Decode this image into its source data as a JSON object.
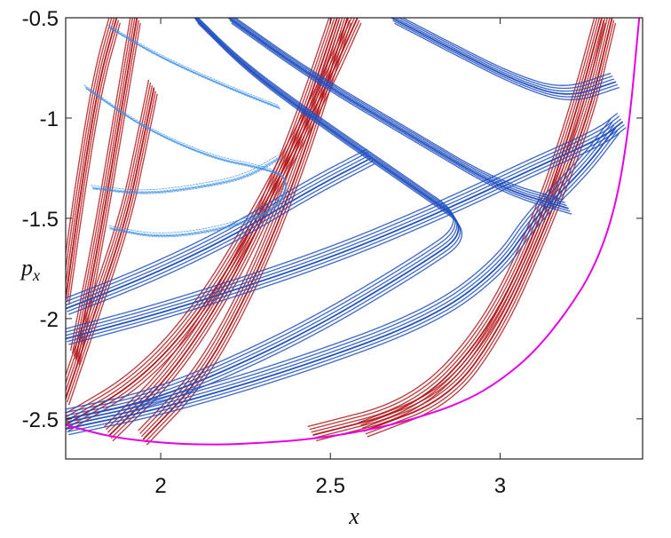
{
  "chart_data": {
    "type": "scatter",
    "title": "",
    "xlabel": "x",
    "ylabel_main": "p",
    "ylabel_sub": "x",
    "xlim": [
      1.72,
      3.42
    ],
    "ylim": [
      -2.7,
      -0.5
    ],
    "x_ticks": [
      2,
      2.5,
      3
    ],
    "x_tick_labels": [
      "2",
      "2.5",
      "3"
    ],
    "y_ticks": [
      -0.5,
      -1,
      -1.5,
      -2,
      -2.5
    ],
    "y_tick_labels": [
      "-0.5",
      "-1",
      "-1.5",
      "-2",
      "-2.5"
    ],
    "grid": false,
    "colors": {
      "red_family": "#b3171b",
      "blue_family": "#1f4fbf",
      "light_blue": "#3a8ee6",
      "boundary": "#e600e6"
    },
    "series": [
      {
        "kind": "boundary",
        "color": "#e600e6",
        "x": [
          1.72,
          1.85,
          2.0,
          2.15,
          2.3,
          2.45,
          2.6,
          2.75,
          2.9,
          3.0,
          3.1,
          3.2,
          3.28,
          3.34,
          3.38,
          3.41
        ],
        "y": [
          -2.53,
          -2.59,
          -2.62,
          -2.63,
          -2.62,
          -2.6,
          -2.56,
          -2.5,
          -2.41,
          -2.31,
          -2.17,
          -1.96,
          -1.74,
          -1.45,
          -1.05,
          -0.5
        ]
      },
      {
        "kind": "red-band-family",
        "color": "#b3171b",
        "bands": [
          {
            "x": [
              1.72,
              1.95,
              2.15,
              2.35,
              2.5,
              2.58
            ],
            "y": [
              -2.53,
              -2.3,
              -1.9,
              -1.3,
              -0.8,
              -0.5
            ]
          },
          {
            "x": [
              1.85,
              2.05,
              2.25,
              2.4,
              2.52
            ],
            "y": [
              -2.58,
              -2.25,
              -1.7,
              -1.1,
              -0.5
            ]
          },
          {
            "x": [
              1.95,
              2.12,
              2.28,
              2.42,
              2.55
            ],
            "y": [
              -2.6,
              -2.3,
              -1.8,
              -1.2,
              -0.5
            ]
          },
          {
            "x": [
              2.45,
              2.75,
              2.95,
              3.1,
              3.22,
              3.3
            ],
            "y": [
              -2.58,
              -2.45,
              -2.1,
              -1.6,
              -1.0,
              -0.5
            ]
          },
          {
            "x": [
              2.6,
              2.85,
              3.0,
              3.12,
              3.26,
              3.33
            ],
            "y": [
              -2.56,
              -2.4,
              -2.05,
              -1.6,
              -1.0,
              -0.5
            ]
          },
          {
            "x": [
              1.72,
              1.8,
              1.9,
              1.95,
              1.98
            ],
            "y": [
              -2.4,
              -2.0,
              -1.5,
              -1.1,
              -0.85
            ]
          },
          {
            "x": [
              1.75,
              1.82,
              1.88,
              1.93
            ],
            "y": [
              -2.2,
              -1.6,
              -1.0,
              -0.5
            ]
          },
          {
            "x": [
              1.72,
              1.77,
              1.82,
              1.87
            ],
            "y": [
              -1.9,
              -1.3,
              -0.8,
              -0.5
            ]
          }
        ]
      },
      {
        "kind": "blue-band-family",
        "color": "#1f4fbf",
        "bands": [
          {
            "x": [
              1.72,
              2.0,
              2.4,
              2.75,
              2.92,
              2.75,
              2.45,
              2.25,
              2.1
            ],
            "y": [
              -2.5,
              -2.4,
              -2.1,
              -1.75,
              -1.55,
              -1.35,
              -1.0,
              -0.75,
              -0.5
            ]
          },
          {
            "x": [
              1.72,
              2.0,
              2.4,
              2.8,
              3.0,
              3.1,
              3.25,
              3.34
            ],
            "y": [
              -2.55,
              -2.45,
              -2.25,
              -2.0,
              -1.75,
              -1.5,
              -1.25,
              -1.05
            ]
          },
          {
            "x": [
              1.72,
              2.05,
              2.5,
              2.85,
              3.1,
              3.3,
              3.36
            ],
            "y": [
              -2.1,
              -1.95,
              -1.7,
              -1.45,
              -1.25,
              -1.1,
              -1.02
            ]
          },
          {
            "x": [
              2.68,
              2.85,
              3.05,
              3.2,
              3.34
            ],
            "y": [
              -0.5,
              -0.65,
              -0.82,
              -0.9,
              -0.82
            ]
          },
          {
            "x": [
              1.72,
              1.95,
              2.2,
              2.45,
              2.62
            ],
            "y": [
              -1.95,
              -1.8,
              -1.6,
              -1.35,
              -1.2
            ]
          },
          {
            "x": [
              2.2,
              2.45,
              2.75,
              3.0,
              3.2
            ],
            "y": [
              -0.5,
              -0.8,
              -1.1,
              -1.35,
              -1.45
            ]
          }
        ]
      },
      {
        "kind": "light-blue-loops",
        "color": "#3a8ee6",
        "bands": [
          {
            "x": [
              1.78,
              1.95,
              2.15,
              2.3,
              2.38,
              2.35,
              2.2,
              2.0,
              1.85
            ],
            "y": [
              -0.85,
              -1.05,
              -1.2,
              -1.25,
              -1.3,
              -1.45,
              -1.55,
              -1.6,
              -1.55
            ]
          },
          {
            "x": [
              1.85,
              2.0,
              2.2,
              2.35
            ],
            "y": [
              -0.55,
              -0.7,
              -0.85,
              -0.95
            ]
          },
          {
            "x": [
              1.8,
              1.95,
              2.1,
              2.25,
              2.35
            ],
            "y": [
              -1.35,
              -1.38,
              -1.35,
              -1.3,
              -1.2
            ]
          }
        ]
      }
    ]
  }
}
